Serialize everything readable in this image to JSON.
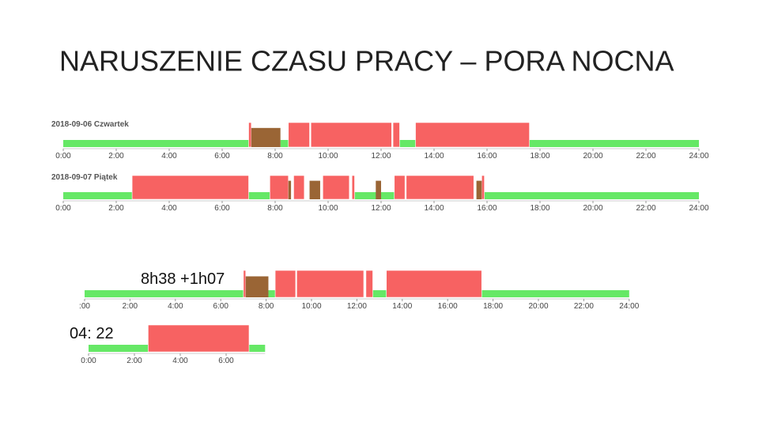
{
  "title": "NARUSZENIE CZASU PRACY – PORA NOCNA",
  "colors": {
    "rest": "#66e866",
    "work": "#f76262",
    "other": "#9a6535"
  },
  "timelines": [
    {
      "label": "2018-09-06 Czwartek",
      "xlim": [
        0,
        24
      ],
      "xticks": [
        {
          "value": 0,
          "label": "0:00"
        },
        {
          "value": 2,
          "label": "2:00"
        },
        {
          "value": 4,
          "label": "4:00"
        },
        {
          "value": 6,
          "label": "6:00"
        },
        {
          "value": 8,
          "label": "8:00"
        },
        {
          "value": 10,
          "label": "10:00"
        },
        {
          "value": 12,
          "label": "12:00"
        },
        {
          "value": 14,
          "label": "14:00"
        },
        {
          "value": 16,
          "label": "16:00"
        },
        {
          "value": 18,
          "label": "18:00"
        },
        {
          "value": 20,
          "label": "20:00"
        },
        {
          "value": 22,
          "label": "22:00"
        },
        {
          "value": 24,
          "label": "24:00"
        }
      ],
      "rest": [
        [
          0,
          7.0
        ],
        [
          8.2,
          8.5
        ],
        [
          12.7,
          13.3
        ],
        [
          17.6,
          24
        ]
      ],
      "work": [
        [
          7.0,
          7.1
        ],
        [
          8.5,
          9.3
        ],
        [
          9.35,
          12.4
        ],
        [
          12.45,
          12.7
        ],
        [
          13.3,
          17.6
        ]
      ],
      "other": [
        [
          7.1,
          8.2
        ]
      ]
    },
    {
      "label": "2018-09-07 Piątek",
      "xlim": [
        0,
        24
      ],
      "xticks": [
        {
          "value": 0,
          "label": "0:00"
        },
        {
          "value": 2,
          "label": "2:00"
        },
        {
          "value": 4,
          "label": "4:00"
        },
        {
          "value": 6,
          "label": "6:00"
        },
        {
          "value": 8,
          "label": "8:00"
        },
        {
          "value": 10,
          "label": "10:00"
        },
        {
          "value": 12,
          "label": "12:00"
        },
        {
          "value": 14,
          "label": "14:00"
        },
        {
          "value": 16,
          "label": "16:00"
        },
        {
          "value": 18,
          "label": "18:00"
        },
        {
          "value": 20,
          "label": "20:00"
        },
        {
          "value": 22,
          "label": "22:00"
        },
        {
          "value": 24,
          "label": "24:00"
        }
      ],
      "rest": [
        [
          0,
          2.6
        ],
        [
          7.0,
          7.8
        ],
        [
          11.0,
          12.5
        ],
        [
          15.9,
          24
        ]
      ],
      "work": [
        [
          2.6,
          7.0
        ],
        [
          7.8,
          8.5
        ],
        [
          8.7,
          9.1
        ],
        [
          9.8,
          10.8
        ],
        [
          10.9,
          11.0
        ],
        [
          12.5,
          12.9
        ],
        [
          12.95,
          15.5
        ],
        [
          15.8,
          15.9
        ]
      ],
      "other": [
        [
          8.5,
          8.6
        ],
        [
          9.3,
          9.7
        ],
        [
          11.8,
          12.0
        ],
        [
          15.6,
          15.8
        ]
      ]
    },
    {
      "annotation": "8h38 +1h07",
      "xlim": [
        0,
        24
      ],
      "xticks": [
        {
          "value": 0,
          "label": ":00"
        },
        {
          "value": 2,
          "label": "2:00"
        },
        {
          "value": 4,
          "label": "4:00"
        },
        {
          "value": 6,
          "label": "6:00"
        },
        {
          "value": 8,
          "label": "8:00"
        },
        {
          "value": 10,
          "label": "10:00"
        },
        {
          "value": 12,
          "label": "12:00"
        },
        {
          "value": 14,
          "label": "14:00"
        },
        {
          "value": 16,
          "label": "16:00"
        },
        {
          "value": 18,
          "label": "18:00"
        },
        {
          "value": 20,
          "label": "20:00"
        },
        {
          "value": 22,
          "label": "22:00"
        },
        {
          "value": 24,
          "label": "24:00"
        }
      ],
      "rest": [
        [
          0,
          7.0
        ],
        [
          8.1,
          8.4
        ],
        [
          12.7,
          13.3
        ],
        [
          17.5,
          24
        ]
      ],
      "work": [
        [
          7.0,
          7.1
        ],
        [
          8.4,
          9.3
        ],
        [
          9.35,
          12.3
        ],
        [
          12.4,
          12.7
        ],
        [
          13.3,
          17.5
        ]
      ],
      "other": [
        [
          7.1,
          8.1
        ]
      ]
    },
    {
      "annotation": "04: 22",
      "xlim": [
        0,
        7.7
      ],
      "xticks": [
        {
          "value": 0,
          "label": "0:00"
        },
        {
          "value": 2,
          "label": "2:00"
        },
        {
          "value": 4,
          "label": "4:00"
        },
        {
          "value": 6,
          "label": "6:00"
        }
      ],
      "rest": [
        [
          0,
          2.6
        ],
        [
          7.0,
          7.7
        ]
      ],
      "work": [
        [
          2.6,
          7.0
        ]
      ],
      "other": []
    }
  ]
}
